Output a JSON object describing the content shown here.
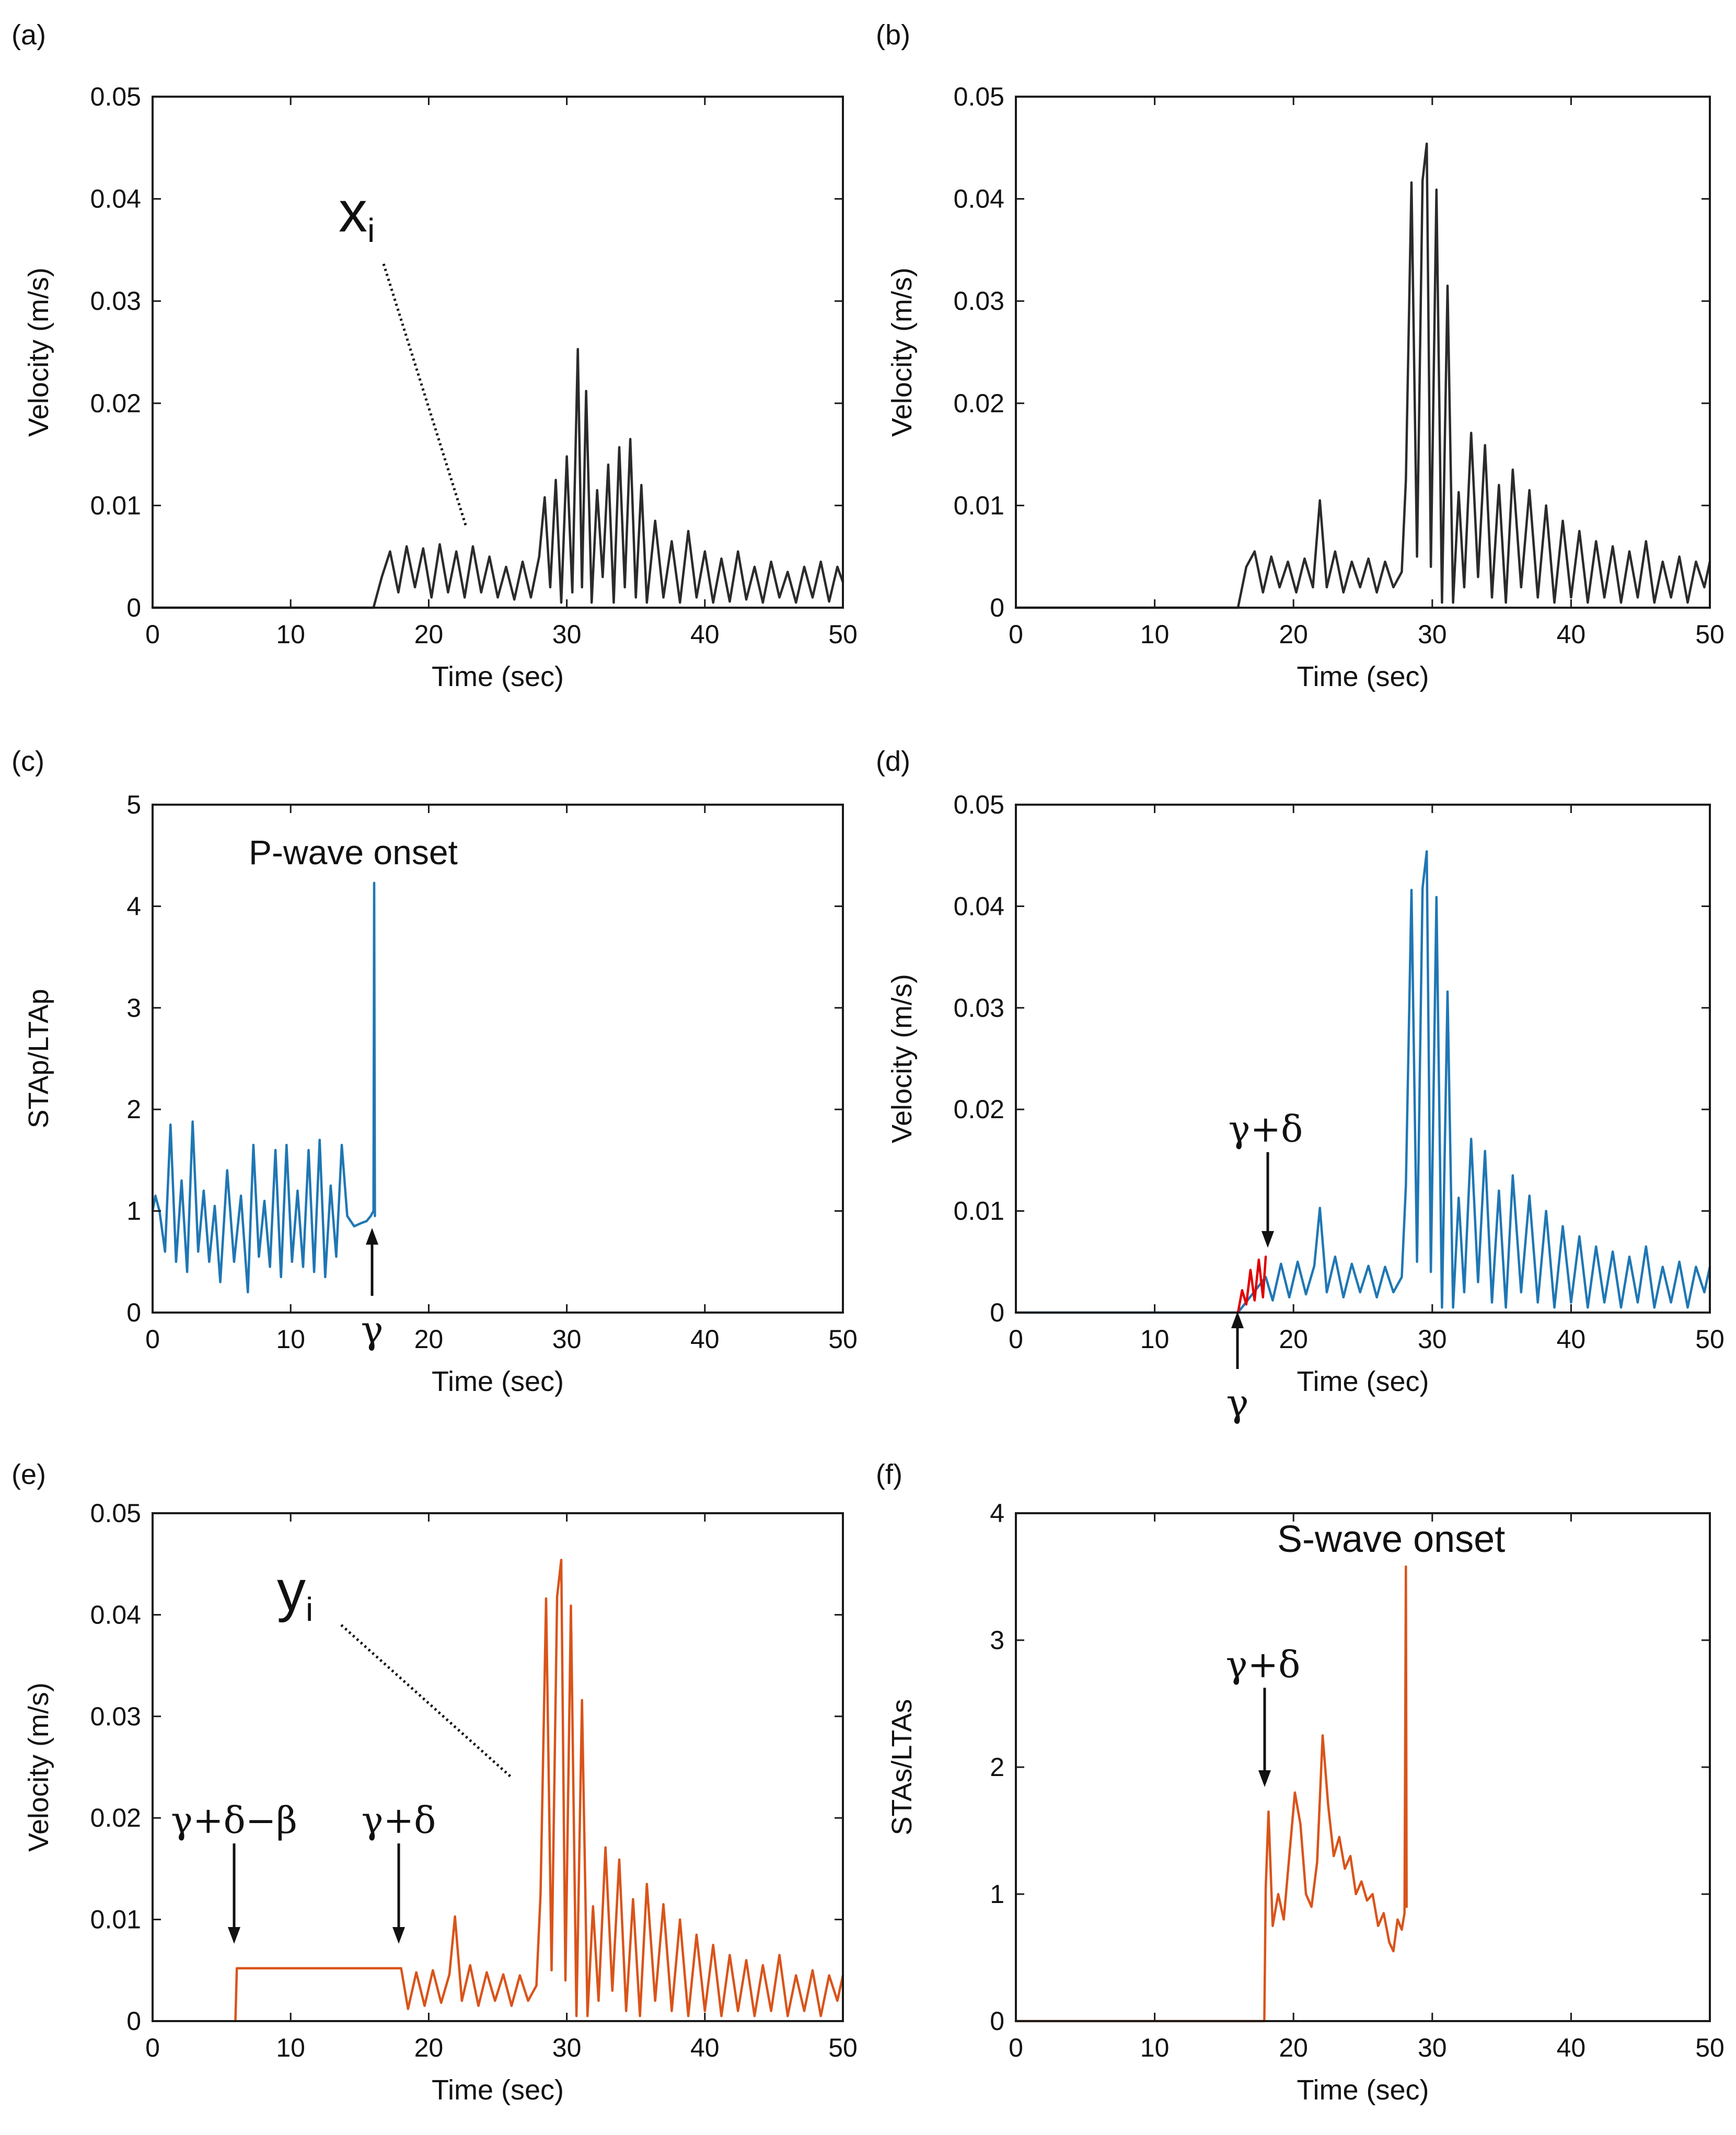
{
  "figure": {
    "panels": [
      {
        "id": "a",
        "panel_label": "(a)"
      },
      {
        "id": "b",
        "panel_label": "(b)"
      },
      {
        "id": "c",
        "panel_label": "(c)"
      },
      {
        "id": "d",
        "panel_label": "(d)"
      },
      {
        "id": "e",
        "panel_label": "(e)"
      },
      {
        "id": "f",
        "panel_label": "(f)"
      }
    ]
  },
  "annotations": {
    "xi_main": "x",
    "xi_sub": "i",
    "yi_main": "y",
    "yi_sub": "i",
    "p_wave_onset": "P-wave onset",
    "s_wave_onset": "S-wave onset",
    "gamma": "γ",
    "gamma_plus_delta": "γ+δ",
    "gamma_plus_delta_minus_beta": "γ+δ−β"
  },
  "colors": {
    "black_series": "#2b2b2b",
    "blue_series": "#1f77b4",
    "red_highlight": "#e00000",
    "orange_series": "#d9541a",
    "annotation_red": "#e8161b"
  },
  "chart_data": [
    {
      "id": "a",
      "type": "line",
      "title": "",
      "xlabel": "Time (sec)",
      "ylabel": "Velocity (m/s)",
      "xlim": [
        0,
        50
      ],
      "ylim": [
        0,
        0.05
      ],
      "xticks": [
        "0",
        "10",
        "20",
        "30",
        "40",
        "50"
      ],
      "yticks": [
        "0",
        "0.01",
        "0.02",
        "0.03",
        "0.04",
        "0.05"
      ],
      "series": [
        {
          "name": "x_i",
          "color": "#2b2b2b",
          "x": [
            0,
            16,
            16.6,
            17.2,
            17.8,
            18.4,
            19,
            19.6,
            20.2,
            20.8,
            21.4,
            22,
            22.6,
            23.2,
            23.8,
            24.4,
            25,
            25.6,
            26.2,
            26.8,
            27.4,
            28,
            28.4,
            28.8,
            29.2,
            29.6,
            30,
            30.4,
            30.8,
            31.1,
            31.4,
            31.8,
            32.2,
            32.6,
            33,
            33.4,
            33.8,
            34.2,
            34.6,
            35,
            35.4,
            35.8,
            36.4,
            37,
            37.6,
            38.2,
            38.8,
            39.4,
            40,
            40.6,
            41.2,
            41.8,
            42.4,
            43,
            43.6,
            44.2,
            44.8,
            45.4,
            46,
            46.6,
            47.2,
            47.8,
            48.4,
            49,
            49.6,
            50
          ],
          "y": [
            0,
            0,
            0.003,
            0.0055,
            0.0015,
            0.006,
            0.002,
            0.0058,
            0.001,
            0.0062,
            0.0015,
            0.0055,
            0.001,
            0.006,
            0.0015,
            0.005,
            0.001,
            0.004,
            0.0008,
            0.0045,
            0.001,
            0.005,
            0.0108,
            0.002,
            0.0125,
            0.0005,
            0.0148,
            0.0015,
            0.0253,
            0.002,
            0.0212,
            0.0005,
            0.0115,
            0.003,
            0.014,
            0.0005,
            0.0157,
            0.002,
            0.0165,
            0.001,
            0.012,
            0.0005,
            0.0085,
            0.001,
            0.0065,
            0.0005,
            0.0075,
            0.001,
            0.0055,
            0.0005,
            0.0048,
            0.0006,
            0.0055,
            0.0008,
            0.004,
            0.0005,
            0.0045,
            0.001,
            0.0035,
            0.0005,
            0.004,
            0.001,
            0.0045,
            0.0006,
            0.004,
            0.0025
          ]
        }
      ]
    },
    {
      "id": "b",
      "type": "line",
      "title": "",
      "xlabel": "Time (sec)",
      "ylabel": "Velocity (m/s)",
      "xlim": [
        0,
        50
      ],
      "ylim": [
        0,
        0.05
      ],
      "xticks": [
        "0",
        "10",
        "20",
        "30",
        "40",
        "50"
      ],
      "yticks": [
        "0",
        "0.01",
        "0.02",
        "0.03",
        "0.04",
        "0.05"
      ],
      "series": [
        {
          "name": "velocity",
          "color": "#2b2b2b",
          "x": [
            0,
            16,
            16.6,
            17.2,
            17.8,
            18.4,
            19,
            19.6,
            20.2,
            20.8,
            21.4,
            21.9,
            22.4,
            23,
            23.6,
            24.2,
            24.8,
            25.4,
            26,
            26.6,
            27.2,
            27.8,
            28.1,
            28.5,
            28.9,
            29.3,
            29.6,
            29.9,
            30.3,
            30.7,
            31.1,
            31.5,
            31.9,
            32.3,
            32.8,
            33.3,
            33.8,
            34.3,
            34.8,
            35.3,
            35.8,
            36.4,
            37,
            37.6,
            38.2,
            38.8,
            39.4,
            40,
            40.6,
            41.2,
            41.8,
            42.4,
            43,
            43.6,
            44.2,
            44.8,
            45.4,
            46,
            46.6,
            47.2,
            47.8,
            48.4,
            49,
            49.6,
            50
          ],
          "y": [
            0,
            0,
            0.004,
            0.0055,
            0.0015,
            0.005,
            0.002,
            0.0045,
            0.0015,
            0.0048,
            0.002,
            0.0105,
            0.002,
            0.0055,
            0.0015,
            0.0045,
            0.002,
            0.0048,
            0.0015,
            0.0045,
            0.002,
            0.0035,
            0.0125,
            0.0416,
            0.005,
            0.0418,
            0.0454,
            0.004,
            0.0409,
            0.0005,
            0.0315,
            0.0005,
            0.0113,
            0.002,
            0.0171,
            0.003,
            0.0159,
            0.001,
            0.012,
            0.0005,
            0.0135,
            0.002,
            0.0115,
            0.001,
            0.01,
            0.0005,
            0.0085,
            0.001,
            0.0075,
            0.0005,
            0.0065,
            0.001,
            0.006,
            0.0005,
            0.0055,
            0.001,
            0.0065,
            0.0005,
            0.0045,
            0.001,
            0.005,
            0.0005,
            0.0045,
            0.002,
            0.0045
          ]
        }
      ]
    },
    {
      "id": "c",
      "type": "line",
      "title": "",
      "xlabel": "Time (sec)",
      "ylabel": "STAp/LTAp",
      "xlim": [
        0,
        50
      ],
      "ylim": [
        0,
        5
      ],
      "xticks": [
        "0",
        "10",
        "20",
        "30",
        "40",
        "50"
      ],
      "yticks": [
        "0",
        "1",
        "2",
        "3",
        "4",
        "5"
      ],
      "series": [
        {
          "name": "STAp/LTAp",
          "color": "#1f77b4",
          "x": [
            0,
            0.2,
            0.5,
            0.9,
            1.3,
            1.7,
            2.1,
            2.5,
            2.9,
            3.3,
            3.7,
            4.1,
            4.5,
            4.9,
            5.4,
            5.9,
            6.4,
            6.9,
            7.3,
            7.7,
            8.1,
            8.5,
            8.9,
            9.3,
            9.7,
            10.1,
            10.5,
            10.9,
            11.3,
            11.7,
            12.1,
            12.5,
            12.9,
            13.3,
            13.7,
            14.1,
            14.6,
            15.1,
            15.5,
            15.8,
            16.0,
            16.05,
            16.1
          ],
          "y": [
            1.0,
            1.15,
            1.0,
            0.6,
            1.85,
            0.5,
            1.3,
            0.4,
            1.88,
            0.6,
            1.2,
            0.5,
            1.05,
            0.3,
            1.4,
            0.5,
            1.15,
            0.2,
            1.65,
            0.55,
            1.1,
            0.45,
            1.6,
            0.35,
            1.65,
            0.5,
            1.2,
            0.45,
            1.6,
            0.4,
            1.7,
            0.35,
            1.25,
            0.55,
            1.65,
            0.95,
            0.85,
            0.88,
            0.9,
            0.95,
            1.0,
            4.23,
            0.95
          ]
        }
      ]
    },
    {
      "id": "d",
      "type": "line",
      "title": "",
      "xlabel": "Time (sec)",
      "ylabel": "Velocity (m/s)",
      "xlim": [
        0,
        50
      ],
      "ylim": [
        0,
        0.05
      ],
      "xticks": [
        "0",
        "10",
        "20",
        "30",
        "40",
        "50"
      ],
      "yticks": [
        "0",
        "0.01",
        "0.02",
        "0.03",
        "0.04",
        "0.05"
      ],
      "series": [
        {
          "name": "velocity",
          "color": "#1f77b4",
          "x": [
            0,
            16,
            18,
            18.5,
            19.1,
            19.7,
            20.3,
            20.9,
            21.5,
            21.9,
            22.4,
            23,
            23.6,
            24.2,
            24.8,
            25.4,
            26,
            26.6,
            27.2,
            27.8,
            28.1,
            28.5,
            28.9,
            29.3,
            29.6,
            29.9,
            30.3,
            30.7,
            31.1,
            31.5,
            31.9,
            32.3,
            32.8,
            33.3,
            33.8,
            34.3,
            34.8,
            35.3,
            35.8,
            36.4,
            37,
            37.6,
            38.2,
            38.8,
            39.4,
            40,
            40.6,
            41.2,
            41.8,
            42.4,
            43,
            43.6,
            44.2,
            44.8,
            45.4,
            46,
            46.6,
            47.2,
            47.8,
            48.4,
            49,
            49.6,
            50
          ],
          "y": [
            0,
            0,
            0.0035,
            0.0012,
            0.0048,
            0.0015,
            0.005,
            0.0018,
            0.0046,
            0.0103,
            0.002,
            0.0055,
            0.0015,
            0.0048,
            0.002,
            0.0046,
            0.0015,
            0.0045,
            0.002,
            0.0035,
            0.0125,
            0.0416,
            0.005,
            0.0418,
            0.0454,
            0.004,
            0.0409,
            0.0005,
            0.0316,
            0.0005,
            0.0113,
            0.002,
            0.0171,
            0.003,
            0.0159,
            0.001,
            0.012,
            0.0005,
            0.0135,
            0.002,
            0.0115,
            0.001,
            0.01,
            0.0005,
            0.0085,
            0.001,
            0.0075,
            0.0005,
            0.0065,
            0.001,
            0.006,
            0.0005,
            0.0055,
            0.001,
            0.0065,
            0.0005,
            0.0045,
            0.001,
            0.005,
            0.0005,
            0.0045,
            0.002,
            0.0045
          ]
        },
        {
          "name": "window γ to γ+δ",
          "color": "#e00000",
          "x": [
            16,
            16.3,
            16.6,
            16.9,
            17.2,
            17.5,
            17.8,
            18
          ],
          "y": [
            0,
            0.0022,
            0.0008,
            0.0042,
            0.0012,
            0.0052,
            0.0015,
            0.0055
          ]
        }
      ]
    },
    {
      "id": "e",
      "type": "line",
      "title": "",
      "xlabel": "Time (sec)",
      "ylabel": "Velocity (m/s)",
      "xlim": [
        0,
        50
      ],
      "ylim": [
        0,
        0.05
      ],
      "xticks": [
        "0",
        "10",
        "20",
        "30",
        "40",
        "50"
      ],
      "yticks": [
        "0",
        "0.01",
        "0.02",
        "0.03",
        "0.04",
        "0.05"
      ],
      "series": [
        {
          "name": "y_i",
          "color": "#d9541a",
          "x": [
            6,
            6.1,
            18,
            18.5,
            19.1,
            19.7,
            20.3,
            20.9,
            21.5,
            21.9,
            22.4,
            23,
            23.6,
            24.2,
            24.8,
            25.4,
            26,
            26.6,
            27.2,
            27.8,
            28.1,
            28.5,
            28.9,
            29.3,
            29.6,
            29.9,
            30.3,
            30.7,
            31.1,
            31.5,
            31.9,
            32.3,
            32.8,
            33.3,
            33.8,
            34.3,
            34.8,
            35.3,
            35.8,
            36.4,
            37,
            37.6,
            38.2,
            38.8,
            39.4,
            40,
            40.6,
            41.2,
            41.8,
            42.4,
            43,
            43.6,
            44.2,
            44.8,
            45.4,
            46,
            46.6,
            47.2,
            47.8,
            48.4,
            49,
            49.6,
            50
          ],
          "y": [
            0,
            0.0052,
            0.0052,
            0.0012,
            0.0048,
            0.0015,
            0.005,
            0.0018,
            0.0046,
            0.0103,
            0.002,
            0.0055,
            0.0015,
            0.0048,
            0.002,
            0.0046,
            0.0015,
            0.0045,
            0.002,
            0.0035,
            0.0125,
            0.0416,
            0.005,
            0.0418,
            0.0454,
            0.004,
            0.0409,
            0.0005,
            0.0316,
            0.0005,
            0.0113,
            0.002,
            0.0171,
            0.003,
            0.0159,
            0.001,
            0.012,
            0.0005,
            0.0135,
            0.002,
            0.0115,
            0.001,
            0.01,
            0.0005,
            0.0085,
            0.001,
            0.0075,
            0.0005,
            0.0065,
            0.001,
            0.006,
            0.0005,
            0.0055,
            0.001,
            0.0065,
            0.0005,
            0.0045,
            0.001,
            0.005,
            0.0005,
            0.0045,
            0.002,
            0.0045
          ]
        }
      ]
    },
    {
      "id": "f",
      "type": "line",
      "title": "",
      "xlabel": "Time (sec)",
      "ylabel": "STAs/LTAs",
      "xlim": [
        0,
        50
      ],
      "ylim": [
        0,
        4
      ],
      "xticks": [
        "0",
        "10",
        "20",
        "30",
        "40",
        "50"
      ],
      "yticks": [
        "0",
        "1",
        "2",
        "3",
        "4"
      ],
      "series": [
        {
          "name": "STAs/LTAs",
          "color": "#d9541a",
          "x": [
            0,
            17.9,
            18.0,
            18.2,
            18.5,
            18.9,
            19.3,
            19.7,
            20.1,
            20.5,
            20.9,
            21.3,
            21.7,
            22.1,
            22.5,
            22.9,
            23.3,
            23.7,
            24.1,
            24.5,
            24.9,
            25.3,
            25.7,
            26.1,
            26.5,
            26.9,
            27.2,
            27.5,
            27.8,
            28.0,
            28.1,
            28.15
          ],
          "y": [
            0,
            0,
            1.05,
            1.65,
            0.75,
            1.0,
            0.8,
            1.3,
            1.8,
            1.55,
            1.0,
            0.9,
            1.25,
            2.25,
            1.7,
            1.3,
            1.45,
            1.2,
            1.3,
            1.0,
            1.1,
            0.95,
            1.0,
            0.75,
            0.85,
            0.62,
            0.55,
            0.8,
            0.72,
            0.85,
            3.58,
            0.9
          ]
        }
      ]
    }
  ]
}
